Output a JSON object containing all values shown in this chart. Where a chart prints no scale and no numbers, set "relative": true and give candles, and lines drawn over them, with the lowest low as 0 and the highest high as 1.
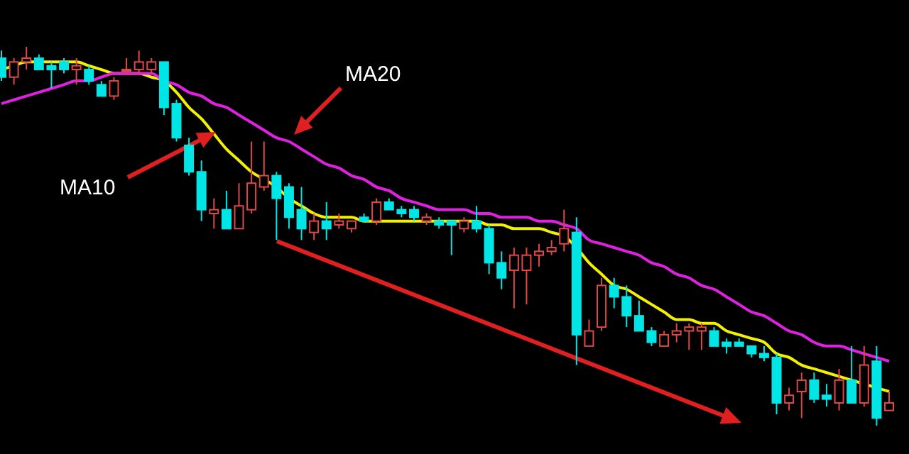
{
  "chart_data": {
    "type": "candlestick",
    "relative": true,
    "annotations": [
      "MA10",
      "MA20"
    ],
    "categories": [
      null,
      null,
      null,
      null,
      null,
      null,
      null,
      null,
      null,
      null,
      null,
      null,
      null,
      null,
      null,
      null,
      null,
      null,
      null,
      null,
      null,
      null,
      null,
      null,
      null,
      null,
      null,
      null,
      null,
      null,
      null,
      null,
      null,
      null,
      null,
      null,
      null,
      null,
      null,
      null,
      null,
      null,
      null,
      null,
      null,
      null,
      null,
      null,
      null,
      null,
      null,
      null,
      null,
      null,
      null,
      null,
      null,
      null,
      null,
      null,
      null,
      null,
      null,
      null,
      null,
      null,
      null,
      null,
      null,
      null,
      null,
      null
    ],
    "ohlc": [
      [
        0.97,
        0.99,
        0.91,
        0.92
      ],
      [
        0.92,
        0.97,
        0.9,
        0.96
      ],
      [
        0.96,
        1,
        0.94,
        0.97
      ],
      [
        0.97,
        0.98,
        0.94,
        0.94
      ],
      [
        0.95,
        0.96,
        0.89,
        0.94
      ],
      [
        0.96,
        0.97,
        0.93,
        0.94
      ],
      [
        0.94,
        0.97,
        0.9,
        0.95
      ],
      [
        0.94,
        0.95,
        0.9,
        0.91
      ],
      [
        0.9,
        0.91,
        0.87,
        0.87
      ],
      [
        0.87,
        0.92,
        0.86,
        0.91
      ],
      [
        0.94,
        0.97,
        0.93,
        0.94
      ],
      [
        0.94,
        0.99,
        0.93,
        0.96
      ],
      [
        0.94,
        0.97,
        0.93,
        0.96
      ],
      [
        0.96,
        0.96,
        0.82,
        0.84
      ],
      [
        0.85,
        0.86,
        0.75,
        0.76
      ],
      [
        0.74,
        0.76,
        0.66,
        0.67
      ],
      [
        0.67,
        0.7,
        0.54,
        0.57
      ],
      [
        0.56,
        0.6,
        0.52,
        0.57
      ],
      [
        0.57,
        0.62,
        0.52,
        0.52
      ],
      [
        0.52,
        0.64,
        0.52,
        0.58
      ],
      [
        0.57,
        0.75,
        0.56,
        0.64
      ],
      [
        0.63,
        0.75,
        0.62,
        0.66
      ],
      [
        0.66,
        0.67,
        0.49,
        0.6
      ],
      [
        0.63,
        0.64,
        0.52,
        0.55
      ],
      [
        0.57,
        0.63,
        0.49,
        0.52
      ],
      [
        0.51,
        0.56,
        0.49,
        0.54
      ],
      [
        0.54,
        0.59,
        0.49,
        0.52
      ],
      [
        0.53,
        0.56,
        0.52,
        0.54
      ],
      [
        0.52,
        0.54,
        0.51,
        0.54
      ],
      [
        0.55,
        0.56,
        0.54,
        0.54
      ],
      [
        0.54,
        0.6,
        0.53,
        0.59
      ],
      [
        0.59,
        0.6,
        0.57,
        0.57
      ],
      [
        0.57,
        0.58,
        0.55,
        0.56
      ],
      [
        0.57,
        0.58,
        0.54,
        0.55
      ],
      [
        0.54,
        0.56,
        0.53,
        0.55
      ],
      [
        0.54,
        0.55,
        0.52,
        0.53
      ],
      [
        0.54,
        0.54,
        0.45,
        0.53
      ],
      [
        0.52,
        0.55,
        0.51,
        0.54
      ],
      [
        0.54,
        0.58,
        0.51,
        0.52
      ],
      [
        0.52,
        0.53,
        0.4,
        0.43
      ],
      [
        0.43,
        0.46,
        0.36,
        0.39
      ],
      [
        0.41,
        0.47,
        0.31,
        0.45
      ],
      [
        0.41,
        0.47,
        0.32,
        0.45
      ],
      [
        0.45,
        0.48,
        0.42,
        0.46
      ],
      [
        0.46,
        0.49,
        0.45,
        0.47
      ],
      [
        0.48,
        0.57,
        0.46,
        0.52
      ],
      [
        0.51,
        0.55,
        0.16,
        0.24
      ],
      [
        0.21,
        0.28,
        0.21,
        0.25
      ],
      [
        0.26,
        0.39,
        0.25,
        0.37
      ],
      [
        0.37,
        0.39,
        0.31,
        0.34
      ],
      [
        0.34,
        0.37,
        0.26,
        0.29
      ],
      [
        0.29,
        0.33,
        0.25,
        0.25
      ],
      [
        0.25,
        0.26,
        0.21,
        0.22
      ],
      [
        0.21,
        0.25,
        0.21,
        0.24
      ],
      [
        0.24,
        0.27,
        0.22,
        0.25
      ],
      [
        0.25,
        0.27,
        0.2,
        0.26
      ],
      [
        0.25,
        0.27,
        0.2,
        0.26
      ],
      [
        0.25,
        0.26,
        0.21,
        0.21
      ],
      [
        0.22,
        0.23,
        0.19,
        0.21
      ],
      [
        0.22,
        0.23,
        0.21,
        0.21
      ],
      [
        0.21,
        0.21,
        0.18,
        0.19
      ],
      [
        0.19,
        0.21,
        0.17,
        0.18
      ],
      [
        0.18,
        0.19,
        0.03,
        0.06
      ],
      [
        0.06,
        0.1,
        0.04,
        0.08
      ],
      [
        0.09,
        0.14,
        0.02,
        0.12
      ],
      [
        0.12,
        0.14,
        0.06,
        0.07
      ],
      [
        0.08,
        0.11,
        0.05,
        0.07
      ],
      [
        0.06,
        0.15,
        0.04,
        0.12
      ],
      [
        0.12,
        0.21,
        0.06,
        0.06
      ],
      [
        0.06,
        0.21,
        0.05,
        0.16
      ],
      [
        0.17,
        0.21,
        0,
        0.02
      ],
      [
        0.04,
        0.09,
        0.04,
        0.06
      ]
    ],
    "series": [
      {
        "type": "line",
        "color": "#f0f000",
        "values": [
          0.94,
          0.95,
          0.96,
          0.96,
          0.96,
          0.96,
          0.96,
          0.95,
          0.94,
          0.93,
          0.93,
          0.93,
          0.92,
          0.91,
          0.88,
          0.84,
          0.81,
          0.77,
          0.73,
          0.7,
          0.67,
          0.65,
          0.63,
          0.6,
          0.58,
          0.56,
          0.55,
          0.55,
          0.55,
          0.54,
          0.54,
          0.54,
          0.54,
          0.54,
          0.54,
          0.54,
          0.54,
          0.54,
          0.54,
          0.53,
          0.53,
          0.52,
          0.52,
          0.52,
          0.51,
          0.5,
          0.47,
          0.43,
          0.4,
          0.37,
          0.36,
          0.34,
          0.32,
          0.3,
          0.28,
          0.28,
          0.27,
          0.27,
          0.25,
          0.24,
          0.23,
          0.22,
          0.19,
          0.18,
          0.16,
          0.15,
          0.14,
          0.13,
          0.12,
          0.11,
          0.1,
          0.09
        ]
      },
      {
        "type": "line",
        "color": "#e020e0",
        "values": [
          0.85,
          0.86,
          0.87,
          0.88,
          0.89,
          0.9,
          0.91,
          0.91,
          0.92,
          0.93,
          0.93,
          0.93,
          0.93,
          0.91,
          0.9,
          0.88,
          0.87,
          0.85,
          0.84,
          0.82,
          0.8,
          0.78,
          0.76,
          0.75,
          0.73,
          0.71,
          0.69,
          0.68,
          0.66,
          0.65,
          0.63,
          0.62,
          0.6,
          0.59,
          0.58,
          0.57,
          0.57,
          0.57,
          0.56,
          0.56,
          0.55,
          0.55,
          0.55,
          0.54,
          0.54,
          0.53,
          0.52,
          0.49,
          0.48,
          0.47,
          0.46,
          0.45,
          0.43,
          0.42,
          0.4,
          0.39,
          0.37,
          0.36,
          0.34,
          0.32,
          0.3,
          0.29,
          0.27,
          0.25,
          0.24,
          0.22,
          0.21,
          0.21,
          0.2,
          0.19,
          0.18,
          0.17
        ]
      }
    ]
  }
}
